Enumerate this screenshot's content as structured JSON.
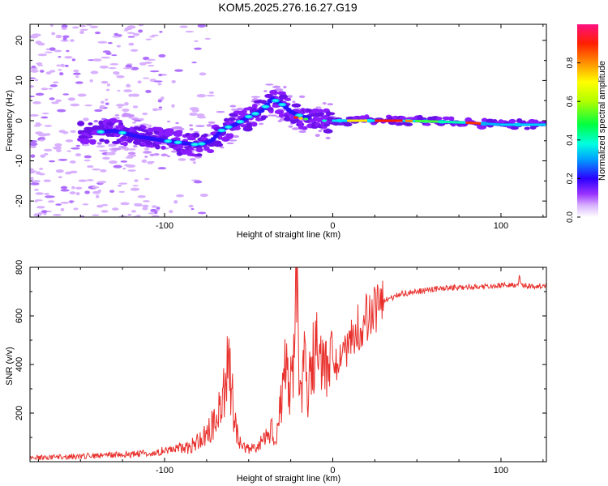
{
  "title": "KOM5.2025.276.16.27.G19",
  "chart_data": [
    {
      "type": "heatmap",
      "name": "spectrogram",
      "xlabel": "Height of straight line (km)",
      "ylabel": "Frequency (Hz)",
      "xlim": [
        -180,
        127
      ],
      "ylim": [
        -24,
        24
      ],
      "xticks": [
        -100,
        0,
        100
      ],
      "yticks": [
        -20,
        -10,
        0,
        10,
        20
      ],
      "colorbar": {
        "label": "Normalized spectral amplitude",
        "range": [
          0,
          1
        ],
        "ticks": [
          0.0,
          0.2,
          0.4,
          0.6,
          0.8
        ]
      },
      "ridge": {
        "x": [
          -145,
          -130,
          -115,
          -100,
          -90,
          -80,
          -72,
          -65,
          -58,
          -50,
          -42,
          -36,
          -30,
          -24,
          -18,
          -10,
          0,
          20,
          40,
          60,
          80,
          100,
          127
        ],
        "freq": [
          -3,
          -2.5,
          -4,
          -5,
          -5.5,
          -6,
          -5,
          -2,
          -1,
          1,
          2.5,
          5.5,
          4,
          2,
          1,
          0.5,
          0,
          0,
          0,
          -0.2,
          -0.5,
          -1,
          -1
        ]
      }
    },
    {
      "type": "line",
      "name": "snr",
      "xlabel": "Height of straight line (km)",
      "ylabel": "SNR (v/v)",
      "xlim": [
        -180,
        127
      ],
      "ylim": [
        0,
        800
      ],
      "xticks": [
        -100,
        0,
        100
      ],
      "yticks": [
        200,
        400,
        600,
        800
      ],
      "series": [
        {
          "name": "SNR",
          "color": "#e8302c",
          "x": [
            -180,
            -160,
            -140,
            -120,
            -105,
            -95,
            -85,
            -75,
            -68,
            -64,
            -62,
            -60,
            -58,
            -55,
            -50,
            -45,
            -40,
            -36,
            -34,
            -30,
            -28,
            -26,
            -24,
            -22,
            -21,
            -20,
            -19,
            -17,
            -15,
            -10,
            -5,
            0,
            5,
            10,
            15,
            20,
            25,
            30,
            40,
            60,
            80,
            100,
            110,
            111,
            112,
            120,
            127
          ],
          "y": [
            15,
            20,
            25,
            30,
            40,
            50,
            60,
            110,
            200,
            300,
            420,
            300,
            150,
            80,
            50,
            60,
            90,
            150,
            60,
            300,
            420,
            250,
            350,
            700,
            790,
            400,
            250,
            380,
            300,
            450,
            350,
            400,
            420,
            500,
            550,
            600,
            620,
            660,
            690,
            710,
            720,
            725,
            730,
            770,
            730,
            720,
            725
          ]
        }
      ]
    }
  ]
}
